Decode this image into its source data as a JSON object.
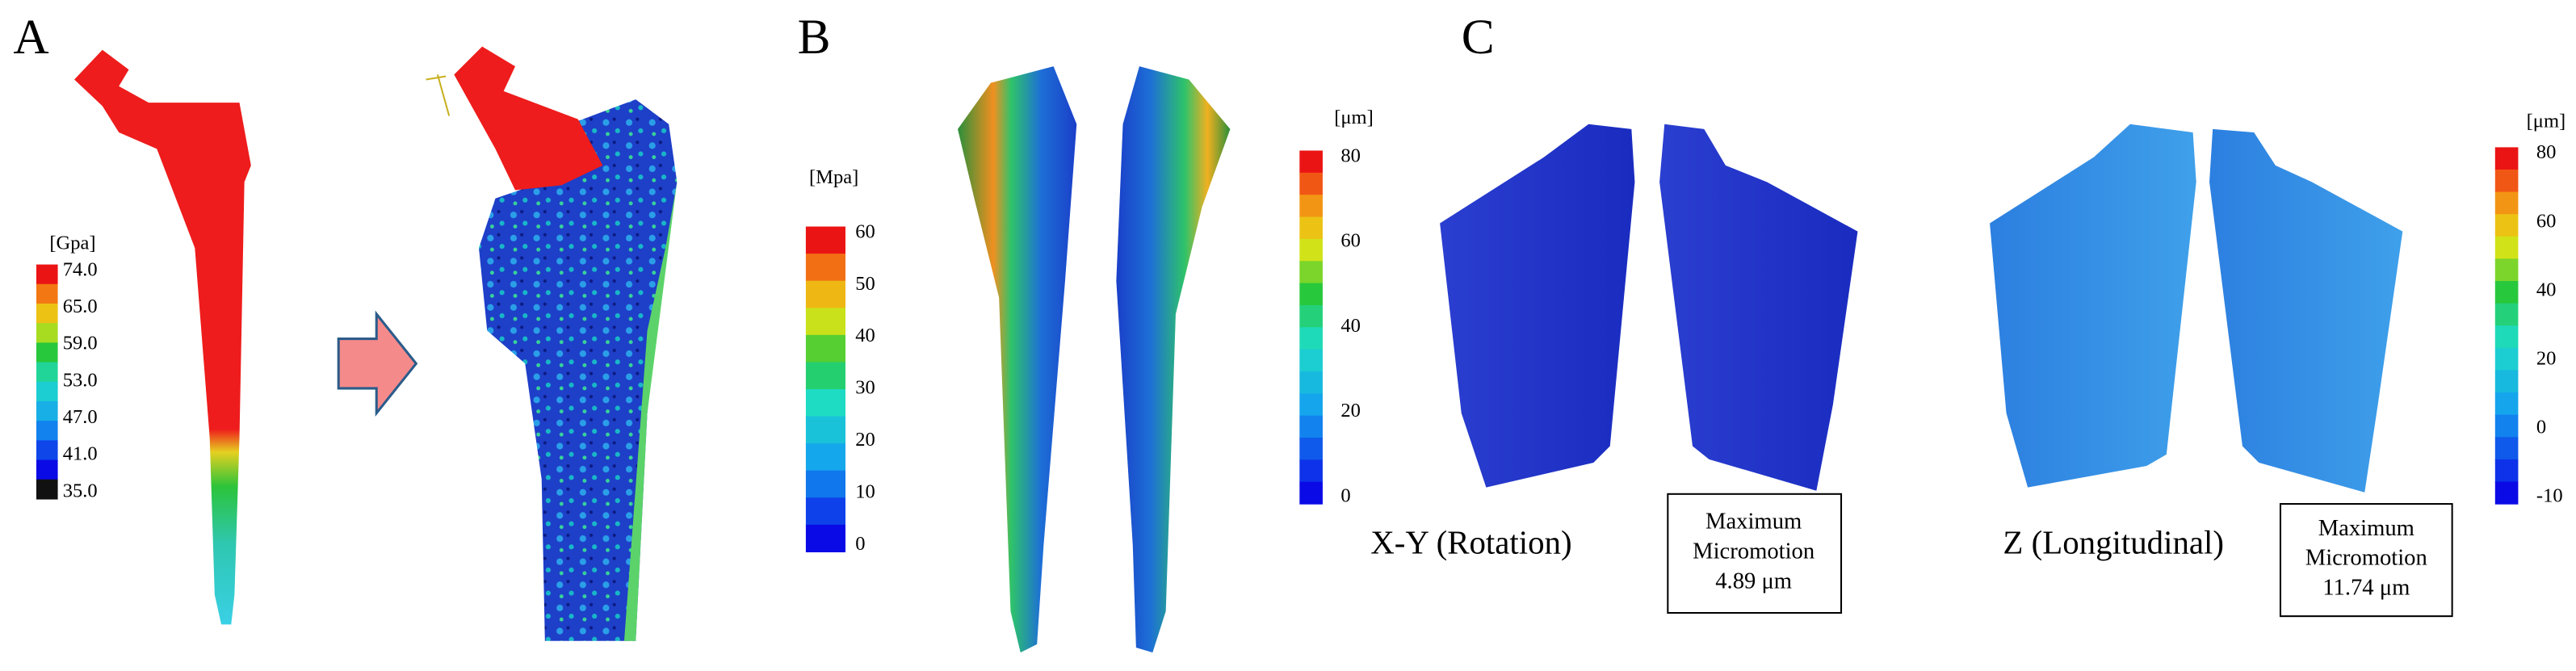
{
  "panels": [
    {
      "label": "A",
      "colorbar": {
        "unit": "[Gpa]",
        "ticks": [
          "74.0",
          "65.0",
          "59.0",
          "53.0",
          "47.0",
          "41.0",
          "35.0"
        ]
      }
    },
    {
      "label": "B",
      "colorbar": {
        "unit": "[Mpa]",
        "ticks": [
          "60",
          "50",
          "40",
          "30",
          "20",
          "10",
          "0"
        ]
      },
      "colorbar2": {
        "unit": "[μm]",
        "ticks": [
          "80",
          "60",
          "40",
          "20",
          "0"
        ]
      }
    },
    {
      "label": "C",
      "views": [
        {
          "caption": "X-Y (Rotation)",
          "box": [
            "Maximum",
            "Micromotion",
            "4.89 μm"
          ]
        },
        {
          "caption": "Z (Longitudinal)",
          "box": [
            "Maximum",
            "Micromotion",
            "11.74 μm"
          ]
        }
      ],
      "colorbar": {
        "unit": "[μm]",
        "ticks": [
          "80",
          "60",
          "40",
          "20",
          "0",
          "-10"
        ]
      }
    }
  ]
}
